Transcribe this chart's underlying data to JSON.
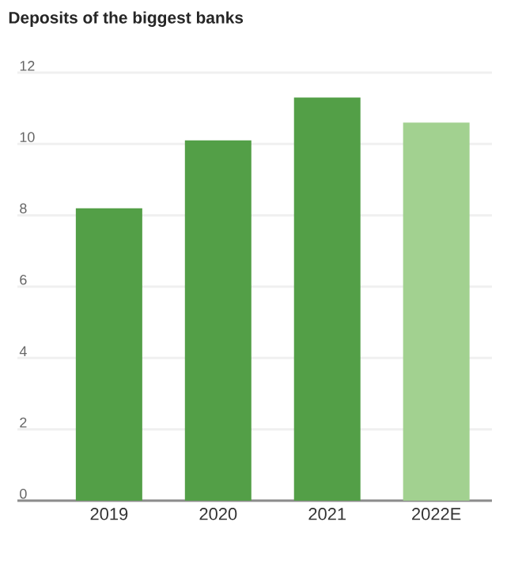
{
  "chart_data": {
    "type": "bar",
    "title": "Deposits of the biggest banks",
    "categories": [
      "2019",
      "2020",
      "2021",
      "2022E"
    ],
    "values": [
      8.2,
      10.1,
      11.3,
      10.6
    ],
    "colors": [
      "#539f47",
      "#539f47",
      "#539f47",
      "#a2d190"
    ],
    "ylim": [
      0,
      12
    ],
    "yticks": [
      0,
      2,
      4,
      6,
      8,
      10,
      12
    ],
    "grid": "y"
  }
}
